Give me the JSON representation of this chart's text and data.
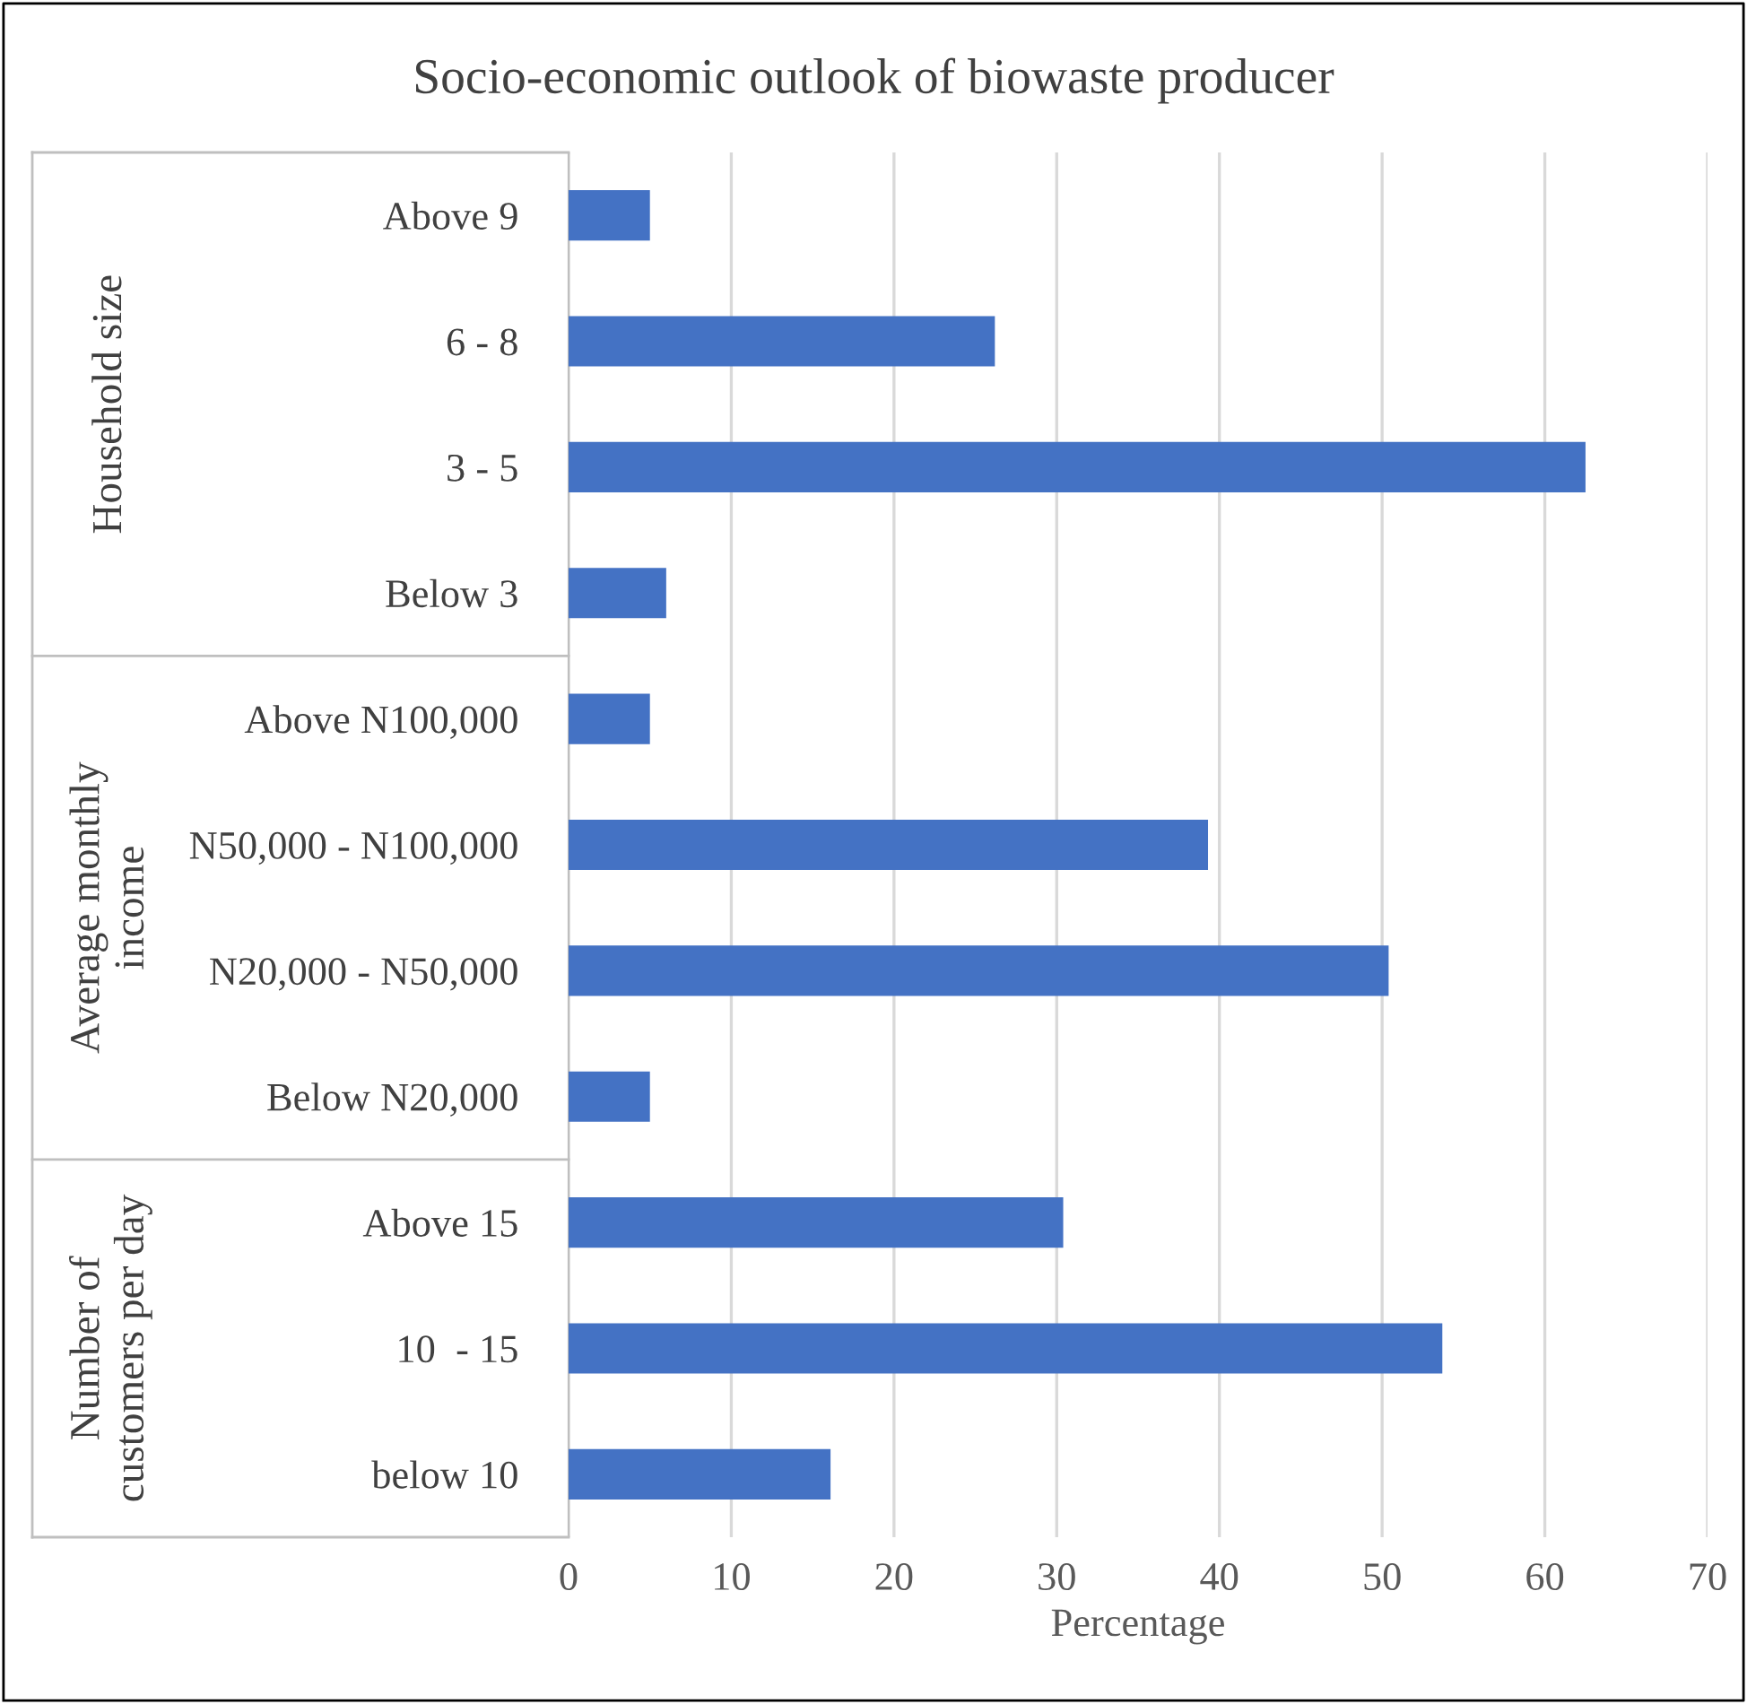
{
  "chart_data": {
    "type": "bar",
    "orientation": "horizontal",
    "title": "Socio-economic outlook of biowaste producer",
    "categories": [
      "Above 9",
      "6 - 8",
      "3 - 5",
      "Below 3",
      "Above N100,000",
      "N50,000 - N100,000",
      "N20,000 - N50,000",
      "Below N20,000",
      "Above 15",
      "10  - 15",
      "below 10"
    ],
    "values": [
      5,
      26.2,
      62.5,
      6,
      5,
      39.3,
      50.4,
      5,
      30.4,
      53.7,
      16.1
    ],
    "color": "#4472c4",
    "xlabel": "Percentage",
    "xlim": [
      0,
      70
    ],
    "xticks": [
      0,
      10,
      20,
      30,
      40,
      50,
      60,
      70
    ],
    "grid": "x",
    "annotations": [
      "Household size",
      "Average monthly income",
      "Number of customers per day"
    ]
  }
}
